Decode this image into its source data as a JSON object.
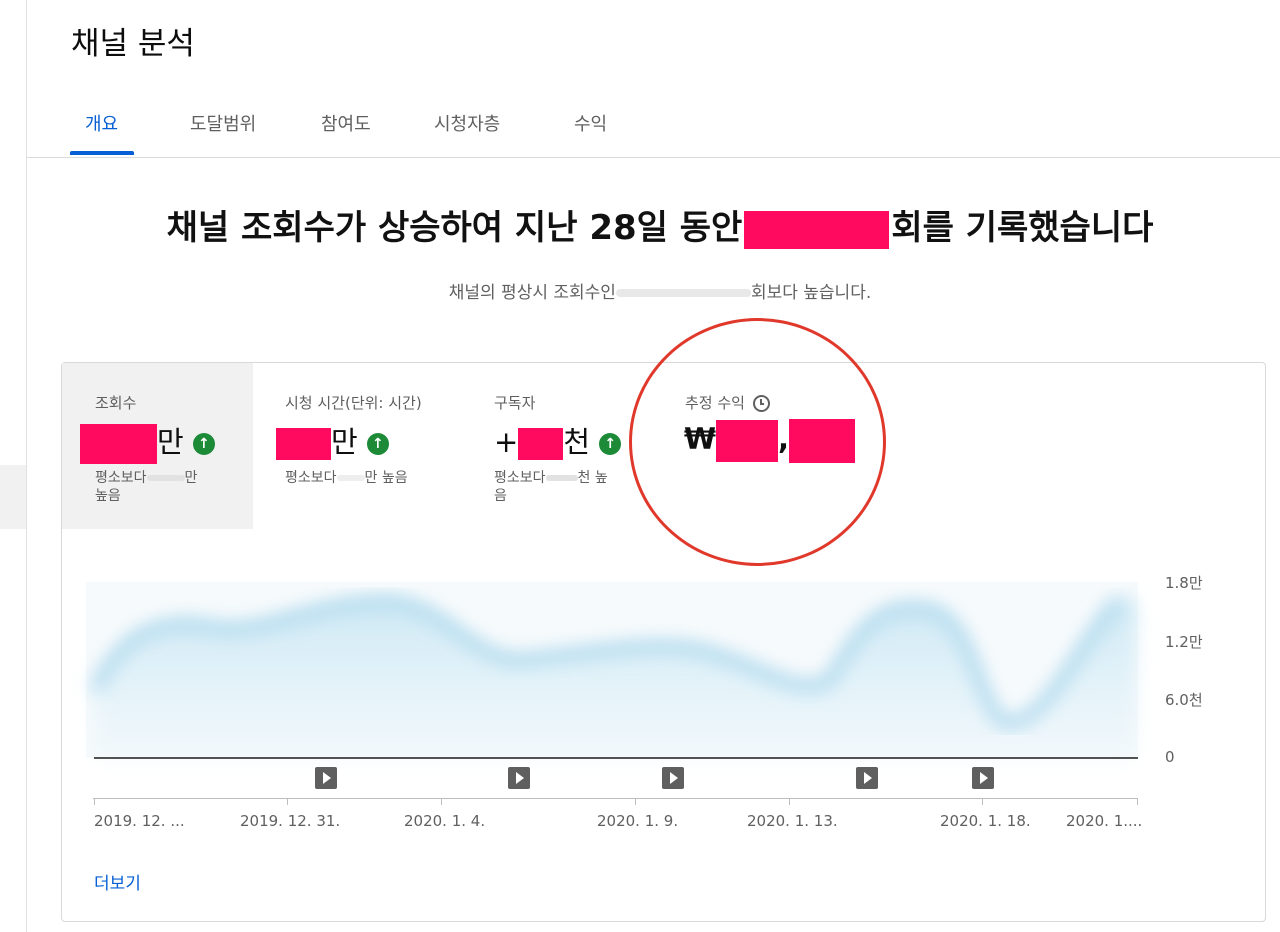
{
  "page": {
    "title": "채널 분석"
  },
  "tabs": [
    {
      "label": "개요",
      "active": true
    },
    {
      "label": "도달범위"
    },
    {
      "label": "참여도"
    },
    {
      "label": "시청자층"
    },
    {
      "label": "수익"
    }
  ],
  "headline": {
    "prefix": "채널 조회수가 상승하여 지난 28일 동안",
    "suffix": "회를 기록했습니다"
  },
  "subline": {
    "prefix": "채널의 평상시 조회수인",
    "suffix": "회보다 높습니다."
  },
  "metrics": {
    "views": {
      "label": "조회수",
      "unit": "만",
      "note_prefix": "평소보다",
      "note_unit": "만",
      "note_suffix": "높음"
    },
    "watch_time": {
      "label": "시청 시간(단위: 시간)",
      "unit": "만",
      "note_prefix": "평소보다",
      "note_unit": "만",
      "note_suffix": "높음"
    },
    "subscribers": {
      "label": "구독자",
      "prefix": "+",
      "unit": "천",
      "note_prefix": "평소보다",
      "note_unit": "천",
      "note_suffix": "높",
      "note_wrap": "음"
    },
    "revenue": {
      "label": "추정 수익",
      "currency": "₩",
      "separator": ","
    }
  },
  "chart_data": {
    "type": "area",
    "y_tick_labels": [
      "1.8만",
      "1.2만",
      "6.0천",
      "0"
    ],
    "x_tick_labels": [
      "2019. 12. ...",
      "2019. 12. 31.",
      "2020. 1. 4.",
      "2020. 1. 9.",
      "2020. 1. 13.",
      "2020. 1. 18.",
      "2020. 1...."
    ],
    "series_color": "#a8d8ee"
  },
  "links": {
    "more": "더보기"
  },
  "colors": {
    "accent": "#065fd4",
    "redaction": "#ff0a5f",
    "up": "#1c8a37",
    "annotation": "#e0392b"
  }
}
